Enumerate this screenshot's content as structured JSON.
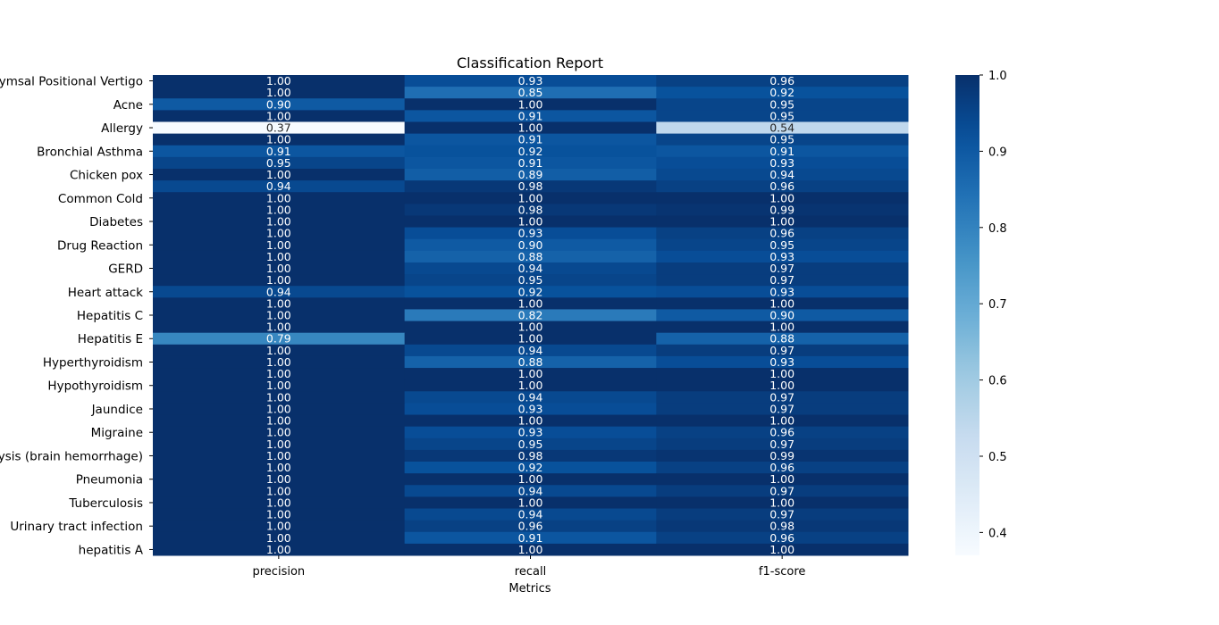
{
  "chart_data": {
    "type": "heatmap",
    "title": "Classification Report",
    "xlabel": "Metrics",
    "ylabel": "",
    "columns": [
      "precision",
      "recall",
      "f1-score"
    ],
    "row_labels_shown": [
      "(vertigo) Paroymsal  Positional Vertigo",
      "Acne",
      "Allergy",
      "Bronchial Asthma",
      "Chicken pox",
      "Common Cold",
      "Diabetes ",
      "Drug Reaction",
      "GERD",
      "Heart attack",
      "Hepatitis C",
      "Hepatitis E",
      "Hyperthyroidism",
      "Hypothyroidism",
      "Jaundice",
      "Migraine",
      "Paralysis (brain hemorrhage)",
      "Pneumonia",
      "Tuberculosis",
      "Urinary tract infection",
      "hepatitis A"
    ],
    "values": [
      [
        1.0,
        0.93,
        0.96
      ],
      [
        1.0,
        0.85,
        0.92
      ],
      [
        0.9,
        1.0,
        0.95
      ],
      [
        1.0,
        0.91,
        0.95
      ],
      [
        0.37,
        1.0,
        0.54
      ],
      [
        1.0,
        0.91,
        0.95
      ],
      [
        0.91,
        0.92,
        0.91
      ],
      [
        0.95,
        0.91,
        0.93
      ],
      [
        1.0,
        0.89,
        0.94
      ],
      [
        0.94,
        0.98,
        0.96
      ],
      [
        1.0,
        1.0,
        1.0
      ],
      [
        1.0,
        0.98,
        0.99
      ],
      [
        1.0,
        1.0,
        1.0
      ],
      [
        1.0,
        0.93,
        0.96
      ],
      [
        1.0,
        0.9,
        0.95
      ],
      [
        1.0,
        0.88,
        0.93
      ],
      [
        1.0,
        0.94,
        0.97
      ],
      [
        1.0,
        0.95,
        0.97
      ],
      [
        0.94,
        0.92,
        0.93
      ],
      [
        1.0,
        1.0,
        1.0
      ],
      [
        1.0,
        0.82,
        0.9
      ],
      [
        1.0,
        1.0,
        1.0
      ],
      [
        0.79,
        1.0,
        0.88
      ],
      [
        1.0,
        0.94,
        0.97
      ],
      [
        1.0,
        0.88,
        0.93
      ],
      [
        1.0,
        1.0,
        1.0
      ],
      [
        1.0,
        1.0,
        1.0
      ],
      [
        1.0,
        0.94,
        0.97
      ],
      [
        1.0,
        0.93,
        0.97
      ],
      [
        1.0,
        1.0,
        1.0
      ],
      [
        1.0,
        0.93,
        0.96
      ],
      [
        1.0,
        0.95,
        0.97
      ],
      [
        1.0,
        0.98,
        0.99
      ],
      [
        1.0,
        0.92,
        0.96
      ],
      [
        1.0,
        1.0,
        1.0
      ],
      [
        1.0,
        0.94,
        0.97
      ],
      [
        1.0,
        1.0,
        1.0
      ],
      [
        1.0,
        0.94,
        0.97
      ],
      [
        1.0,
        0.96,
        0.98
      ],
      [
        1.0,
        0.91,
        0.96
      ],
      [
        1.0,
        1.0,
        1.0
      ]
    ],
    "colorbar": {
      "vmin": 0.37,
      "vmax": 1.0,
      "ticks": [
        "0.4",
        "0.5",
        "0.6",
        "0.7",
        "0.8",
        "0.9",
        "1.0"
      ],
      "colormap": "Blues"
    },
    "annotation_format": "0.00",
    "grid": false,
    "legend": "colorbar-right"
  }
}
